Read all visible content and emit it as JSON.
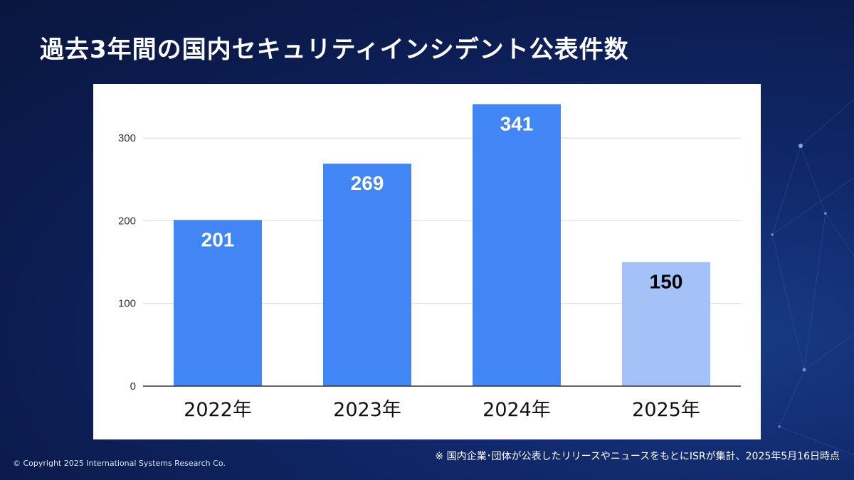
{
  "title": "過去3年間の国内セキュリティインシデント公表件数",
  "footnote": "※ 国内企業･団体が公表したリリースやニュースをもとにISRが集計、2025年5月16日時点",
  "copyright": "© Copyright 2025 International Systems Research Co.",
  "colors": {
    "bar": "#4285f4",
    "bar_partial": "#a4c2f7",
    "gridline": "#d9d9d9",
    "axis": "#333333"
  },
  "chart_data": {
    "type": "bar",
    "title": "",
    "xlabel": "",
    "ylabel": "",
    "categories": [
      "2022年",
      "2023年",
      "2024年",
      "2025年"
    ],
    "values": [
      201,
      269,
      341,
      150
    ],
    "ylim": [
      0,
      350
    ],
    "yticks": [
      0,
      100,
      200,
      300
    ],
    "data_labels": [
      "201",
      "269",
      "341",
      "150"
    ],
    "grid": true,
    "legend": "none"
  }
}
